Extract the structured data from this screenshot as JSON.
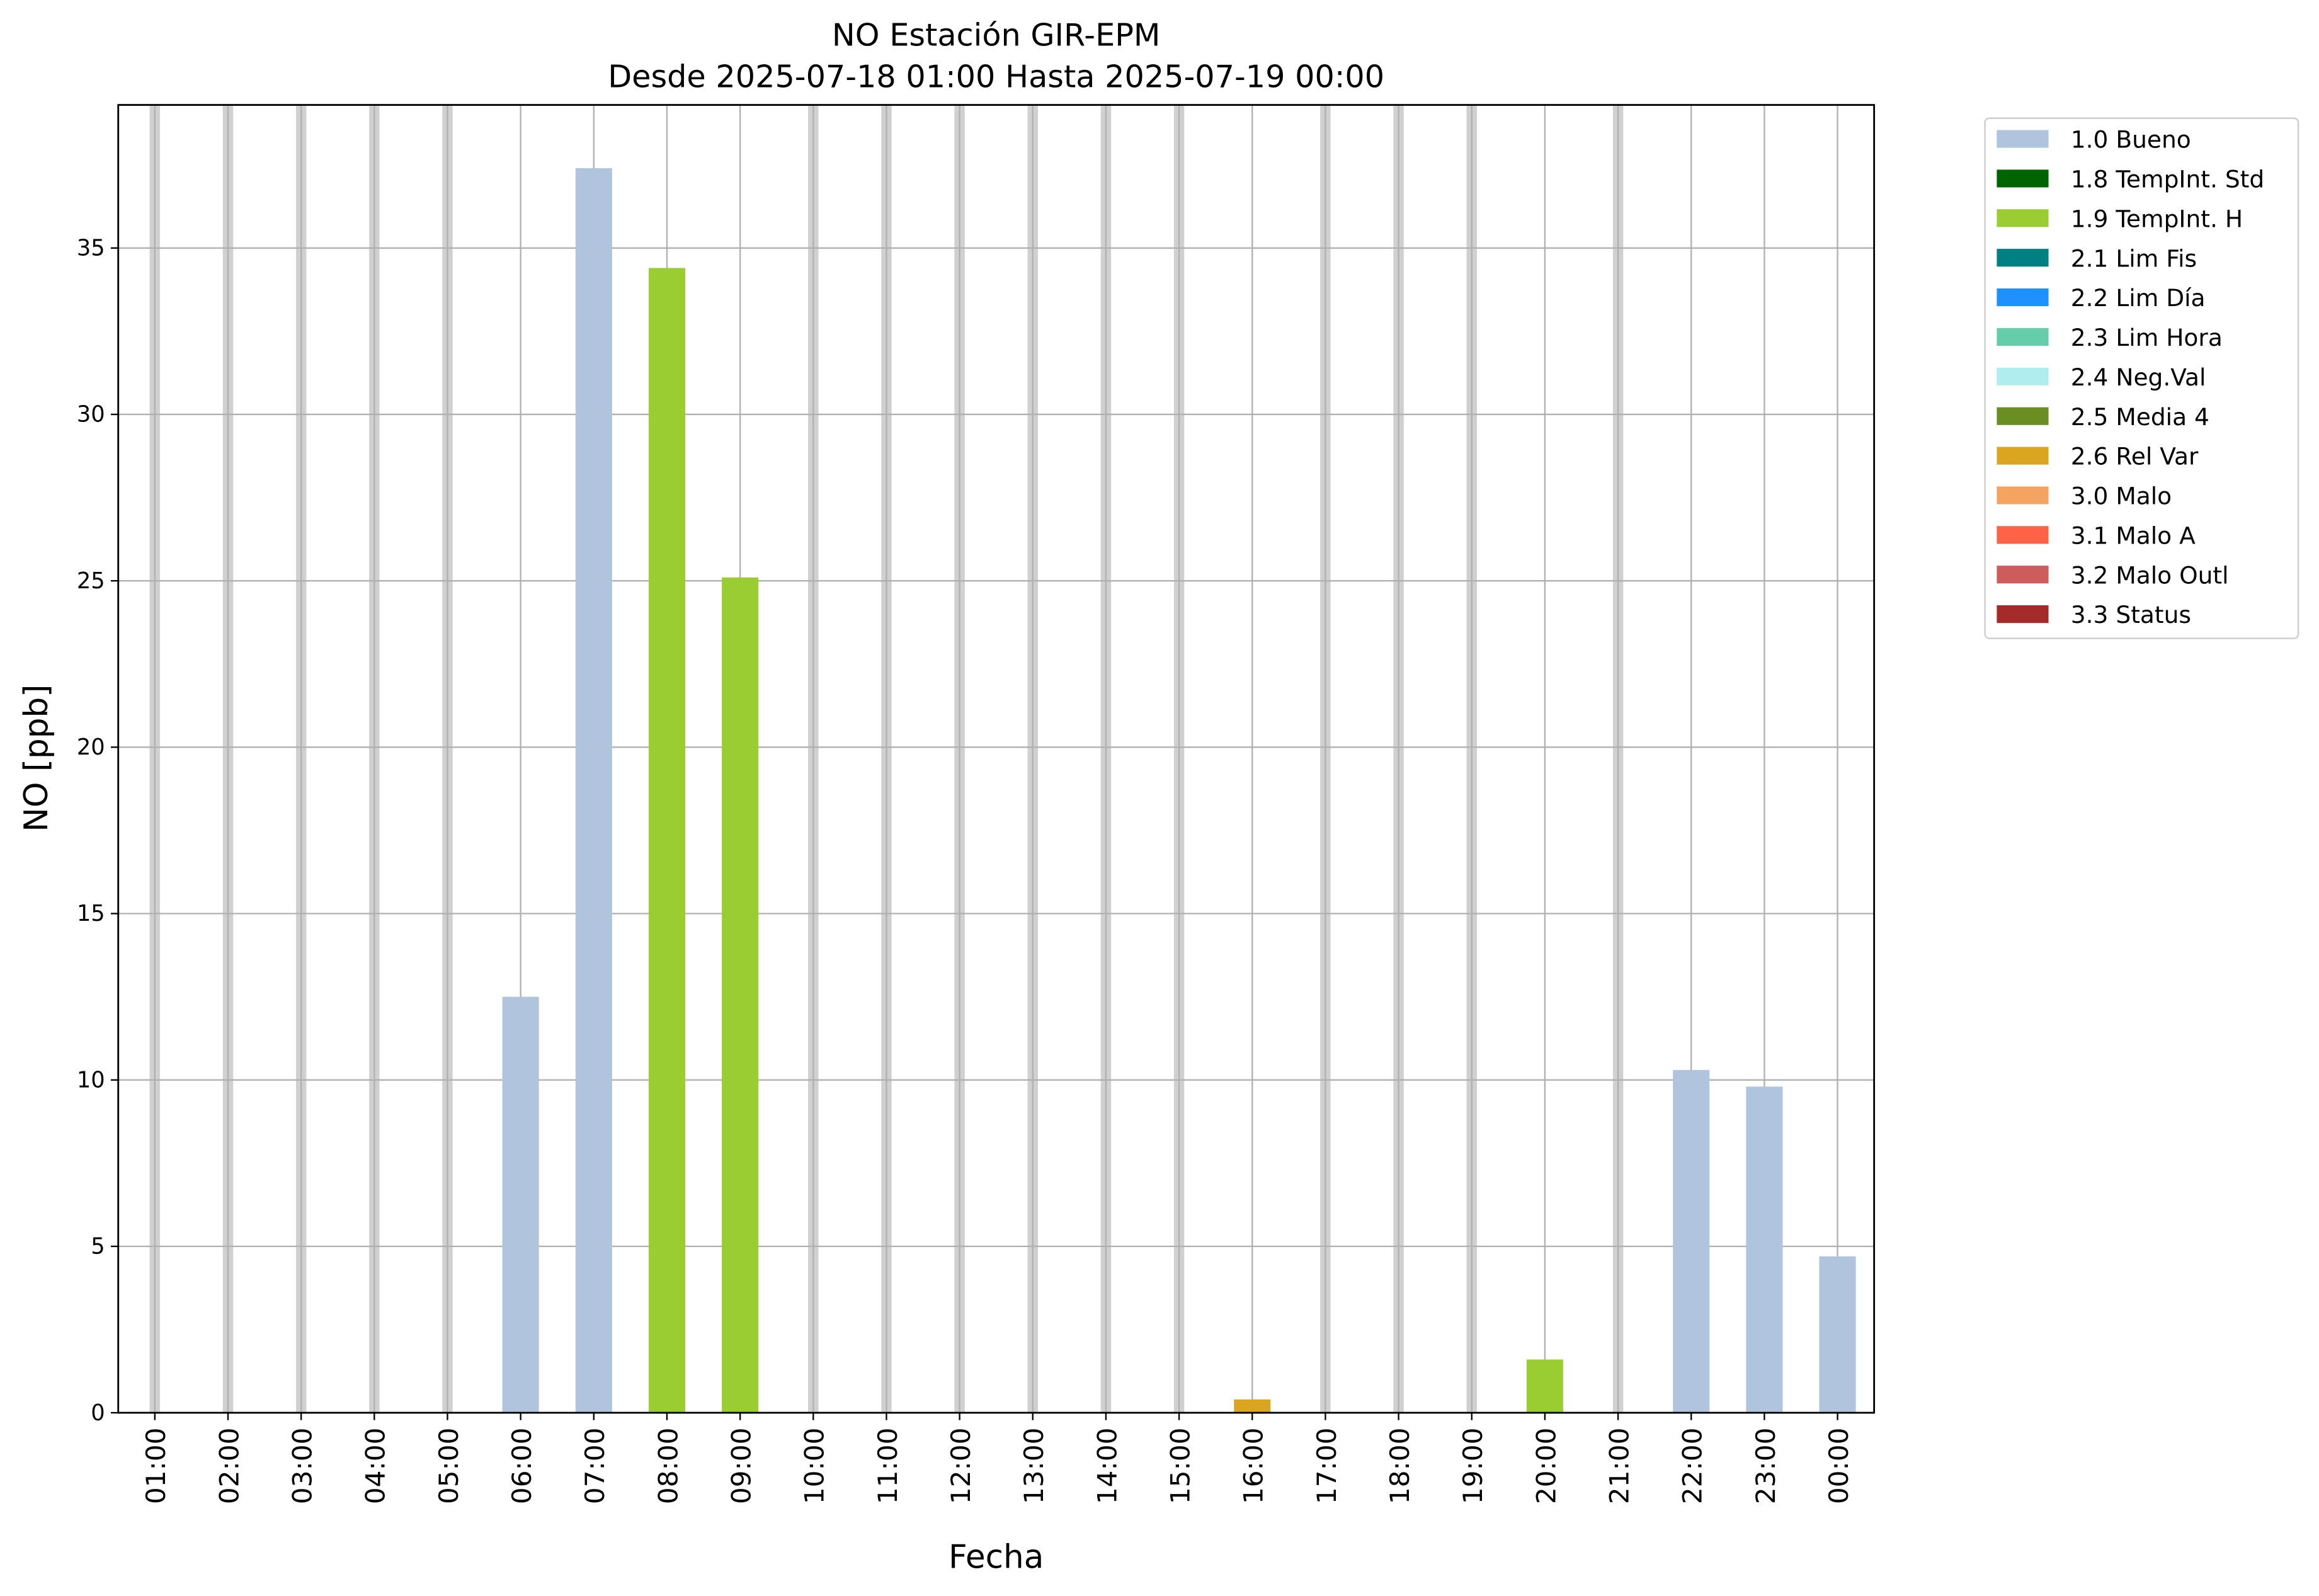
{
  "chart_data": {
    "type": "stacked_bar",
    "title": "NO Estación GIR-EPM",
    "subtitle": "Desde 2025-07-18 01:00 Hasta 2025-07-19 00:00",
    "x_label": "Fecha",
    "y_label": "NO [ppb]",
    "categories": [
      "01:00",
      "02:00",
      "03:00",
      "04:00",
      "05:00",
      "06:00",
      "07:00",
      "08:00",
      "09:00",
      "10:00",
      "11:00",
      "12:00",
      "13:00",
      "14:00",
      "15:00",
      "16:00",
      "17:00",
      "18:00",
      "19:00",
      "20:00",
      "21:00",
      "22:00",
      "23:00",
      "00:00"
    ],
    "series": [
      {
        "name": "1.0 Bueno",
        "color": "#b0c4de",
        "values": [
          null,
          null,
          null,
          null,
          null,
          12.5,
          37.4,
          null,
          null,
          null,
          null,
          null,
          null,
          null,
          null,
          null,
          null,
          null,
          null,
          null,
          null,
          10.3,
          9.8,
          4.7
        ]
      },
      {
        "name": "1.8 TempInt. Std",
        "color": "#006400",
        "values": [
          null,
          null,
          null,
          null,
          null,
          null,
          null,
          null,
          null,
          null,
          null,
          null,
          null,
          null,
          null,
          null,
          null,
          null,
          null,
          null,
          null,
          null,
          null,
          null
        ]
      },
      {
        "name": "1.9 TempInt. H",
        "color": "#9acd32",
        "values": [
          null,
          null,
          null,
          null,
          null,
          null,
          null,
          34.4,
          25.1,
          null,
          null,
          null,
          null,
          null,
          null,
          null,
          null,
          null,
          null,
          1.6,
          null,
          null,
          null,
          null
        ]
      },
      {
        "name": "2.1 Lim Fis",
        "color": "#008080",
        "values": [
          null,
          null,
          null,
          null,
          null,
          null,
          null,
          null,
          null,
          null,
          null,
          null,
          null,
          null,
          null,
          null,
          null,
          null,
          null,
          null,
          null,
          null,
          null,
          null
        ]
      },
      {
        "name": "2.2 Lim Día",
        "color": "#1e90ff",
        "values": [
          null,
          null,
          null,
          null,
          null,
          null,
          null,
          null,
          null,
          null,
          null,
          null,
          null,
          null,
          null,
          null,
          null,
          null,
          null,
          null,
          null,
          null,
          null,
          null
        ]
      },
      {
        "name": "2.3 Lim Hora",
        "color": "#66cdaa",
        "values": [
          null,
          null,
          null,
          null,
          null,
          null,
          null,
          null,
          null,
          null,
          null,
          null,
          null,
          null,
          null,
          null,
          null,
          null,
          null,
          null,
          null,
          null,
          null,
          null
        ]
      },
      {
        "name": "2.4 Neg.Val",
        "color": "#afeeee",
        "values": [
          null,
          null,
          null,
          null,
          null,
          null,
          null,
          null,
          null,
          null,
          null,
          null,
          null,
          null,
          null,
          null,
          null,
          null,
          null,
          null,
          null,
          null,
          null,
          null
        ]
      },
      {
        "name": "2.5 Media 4",
        "color": "#6b8e23",
        "values": [
          null,
          null,
          null,
          null,
          null,
          null,
          null,
          null,
          null,
          null,
          null,
          null,
          null,
          null,
          null,
          null,
          null,
          null,
          null,
          null,
          null,
          null,
          null,
          null
        ]
      },
      {
        "name": "2.6 Rel Var",
        "color": "#daa520",
        "values": [
          null,
          null,
          null,
          null,
          null,
          null,
          null,
          null,
          null,
          null,
          null,
          null,
          null,
          null,
          null,
          0.4,
          null,
          null,
          null,
          null,
          null,
          null,
          null,
          null
        ]
      },
      {
        "name": "3.0 Malo",
        "color": "#f4a460",
        "values": [
          null,
          null,
          null,
          null,
          null,
          null,
          null,
          null,
          null,
          null,
          null,
          null,
          null,
          null,
          null,
          null,
          null,
          null,
          null,
          null,
          null,
          null,
          null,
          null
        ]
      },
      {
        "name": "3.1 Malo A",
        "color": "#ff6347",
        "values": [
          null,
          null,
          null,
          null,
          null,
          null,
          null,
          null,
          null,
          null,
          null,
          null,
          null,
          null,
          null,
          null,
          null,
          null,
          null,
          null,
          null,
          null,
          null,
          null
        ]
      },
      {
        "name": "3.2 Malo Outl",
        "color": "#cd5c5c",
        "values": [
          null,
          null,
          null,
          null,
          null,
          null,
          null,
          null,
          null,
          null,
          null,
          null,
          null,
          null,
          null,
          null,
          null,
          null,
          null,
          null,
          null,
          null,
          null,
          null
        ]
      },
      {
        "name": "3.3 Status",
        "color": "#a52a2a",
        "values": [
          null,
          null,
          null,
          null,
          null,
          null,
          null,
          null,
          null,
          null,
          null,
          null,
          null,
          null,
          null,
          null,
          null,
          null,
          null,
          null,
          null,
          null,
          null,
          null
        ]
      }
    ],
    "ylim": [
      0,
      39.3
    ],
    "yticks": [
      0,
      5,
      10,
      15,
      20,
      25,
      30,
      35
    ],
    "grid": true,
    "legend": "outside right"
  }
}
